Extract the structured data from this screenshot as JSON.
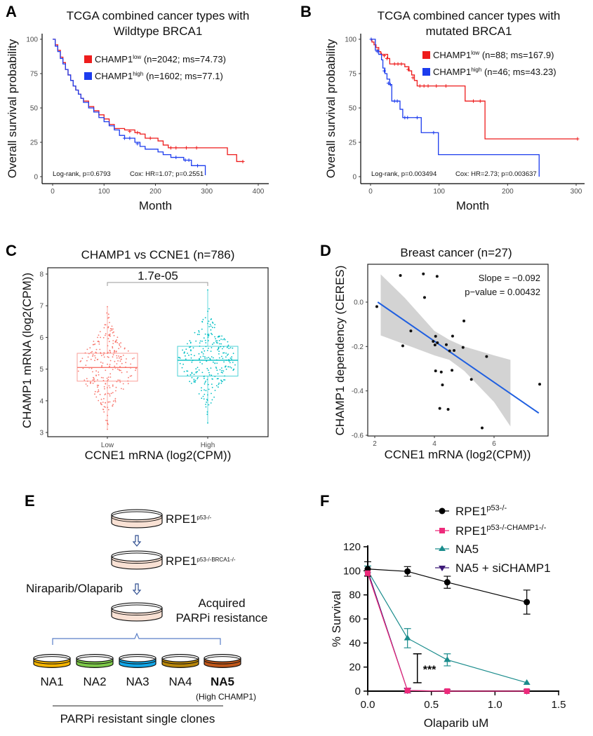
{
  "chart_data": [
    {
      "panel": "A",
      "type": "line",
      "title": [
        "TCGA combined cancer types with",
        "Wildtype BRCA1"
      ],
      "xlabel": "Month",
      "ylabel": "Overall survival probability",
      "xlim": [
        0,
        400
      ],
      "ylim": [
        0,
        100
      ],
      "xticks": [
        "0",
        "100",
        "200",
        "300",
        "400"
      ],
      "yticks": [
        "0",
        "25",
        "50",
        "75",
        "100"
      ],
      "grid": false,
      "legend_position": "top-right",
      "annotation": {
        "logrank": "Log-rank, p=0.6793",
        "cox": "Cox: HR=1.07; p=0.2551"
      },
      "series": [
        {
          "name": "CHAMP1",
          "sup": "low",
          "stats": "(n=2042; ms=74.73)",
          "color": "#ee1c1c",
          "steps": [
            [
              0,
              100
            ],
            [
              5,
              96
            ],
            [
              10,
              92
            ],
            [
              15,
              87
            ],
            [
              20,
              83
            ],
            [
              25,
              78
            ],
            [
              30,
              74
            ],
            [
              35,
              70
            ],
            [
              40,
              66
            ],
            [
              45,
              63
            ],
            [
              50,
              60
            ],
            [
              55,
              57
            ],
            [
              60,
              55
            ],
            [
              70,
              51
            ],
            [
              80,
              48
            ],
            [
              90,
              45
            ],
            [
              100,
              42
            ],
            [
              110,
              38
            ],
            [
              120,
              35
            ],
            [
              140,
              34
            ],
            [
              160,
              32
            ],
            [
              170,
              31
            ],
            [
              180,
              28
            ],
            [
              205,
              26
            ],
            [
              215,
              23
            ],
            [
              225,
              21
            ],
            [
              340,
              16
            ],
            [
              358,
              11
            ],
            [
              370,
              11
            ]
          ],
          "censored": [
            [
              150,
              33
            ],
            [
              165,
              32
            ],
            [
              190,
              28
            ],
            [
              230,
              21
            ],
            [
              240,
              21
            ],
            [
              260,
              21
            ],
            [
              280,
              21
            ],
            [
              370,
              11
            ]
          ]
        },
        {
          "name": "CHAMP1",
          "sup": "high",
          "stats": "(n=1602; ms=77.1)",
          "color": "#1c3cee",
          "steps": [
            [
              0,
              100
            ],
            [
              5,
              95
            ],
            [
              10,
              91
            ],
            [
              15,
              86
            ],
            [
              20,
              82
            ],
            [
              25,
              78
            ],
            [
              30,
              74
            ],
            [
              35,
              70
            ],
            [
              40,
              66
            ],
            [
              45,
              63
            ],
            [
              50,
              60
            ],
            [
              55,
              57
            ],
            [
              60,
              54
            ],
            [
              70,
              50
            ],
            [
              80,
              47
            ],
            [
              90,
              43
            ],
            [
              100,
              40
            ],
            [
              110,
              37
            ],
            [
              120,
              34
            ],
            [
              130,
              30
            ],
            [
              140,
              28
            ],
            [
              160,
              25
            ],
            [
              170,
              22
            ],
            [
              180,
              20
            ],
            [
              205,
              18
            ],
            [
              215,
              16
            ],
            [
              230,
              14
            ],
            [
              255,
              12
            ],
            [
              270,
              8
            ],
            [
              297,
              1
            ]
          ],
          "censored": [
            [
              140,
              28
            ],
            [
              150,
              28
            ],
            [
              165,
              24
            ],
            [
              240,
              14
            ],
            [
              258,
              12
            ],
            [
              265,
              12
            ],
            [
              282,
              8
            ]
          ]
        }
      ]
    },
    {
      "panel": "B",
      "type": "line",
      "title": [
        "TCGA combined cancer types with",
        "mutated BRCA1"
      ],
      "xlabel": "Month",
      "ylabel": "Overall survival probability",
      "xlim": [
        0,
        300
      ],
      "ylim": [
        0,
        100
      ],
      "xticks": [
        "0",
        "100",
        "200",
        "300"
      ],
      "yticks": [
        "0",
        "25",
        "50",
        "75",
        "100"
      ],
      "grid": false,
      "legend_position": "top-right",
      "annotation": {
        "logrank": "Log-rank, p=0.003494",
        "cox": "Cox: HR=2.73; p=0.003637"
      },
      "series": [
        {
          "name": "CHAMP1",
          "sup": "low",
          "stats": "(n=88; ms=167.9)",
          "color": "#ee1c1c",
          "steps": [
            [
              0,
              100
            ],
            [
              2,
              98
            ],
            [
              5,
              96
            ],
            [
              8,
              94
            ],
            [
              12,
              91
            ],
            [
              15,
              89
            ],
            [
              25,
              86
            ],
            [
              28,
              82
            ],
            [
              50,
              80
            ],
            [
              56,
              77
            ],
            [
              60,
              74
            ],
            [
              64,
              70
            ],
            [
              68,
              66
            ],
            [
              138,
              55
            ],
            [
              167,
              27.5
            ],
            [
              302,
              27.5
            ]
          ],
          "censored": [
            [
              10,
              92
            ],
            [
              16,
              89
            ],
            [
              20,
              88
            ],
            [
              24,
              86
            ],
            [
              35,
              82
            ],
            [
              40,
              82
            ],
            [
              45,
              82
            ],
            [
              55,
              78
            ],
            [
              62,
              72
            ],
            [
              72,
              66
            ],
            [
              78,
              66
            ],
            [
              84,
              66
            ],
            [
              96,
              66
            ],
            [
              110,
              66
            ],
            [
              150,
              55
            ],
            [
              160,
              55
            ],
            [
              302,
              27.5
            ]
          ]
        },
        {
          "name": "CHAMP1",
          "sup": "high",
          "stats": "(n=46; ms=43.23)",
          "color": "#1c3cee",
          "steps": [
            [
              0,
              100
            ],
            [
              7,
              92
            ],
            [
              12,
              89
            ],
            [
              16,
              85
            ],
            [
              18,
              79
            ],
            [
              21,
              75
            ],
            [
              24,
              71
            ],
            [
              28,
              67
            ],
            [
              31,
              55
            ],
            [
              43,
              49
            ],
            [
              47,
              43
            ],
            [
              74,
              32
            ],
            [
              99,
              16
            ],
            [
              246,
              0
            ]
          ],
          "censored": [
            [
              1,
              100
            ],
            [
              10,
              91
            ],
            [
              20,
              77
            ],
            [
              26,
              68
            ],
            [
              29,
              67
            ],
            [
              35,
              55
            ],
            [
              39,
              55
            ],
            [
              50,
              43
            ],
            [
              54,
              43
            ],
            [
              68,
              43
            ],
            [
              92,
              32
            ]
          ]
        }
      ]
    },
    {
      "panel": "C",
      "type": "box",
      "title": "CHAMP1 vs CCNE1 (n=786)",
      "xlabel": "CCNE1 mRNA (log2(CPM))",
      "ylabel": "CHAMP1 mRNA (log2(CPM))",
      "ylim": [
        3,
        8
      ],
      "yticks": [
        "3",
        "4",
        "5",
        "6",
        "7",
        "8"
      ],
      "categories": [
        "Low",
        "High"
      ],
      "p_value": "1.7e-05",
      "groups": [
        {
          "category": "Low",
          "color": "#f8766d",
          "min": 3.1,
          "q1": 4.62,
          "median": 5.05,
          "q3": 5.5,
          "max": 6.97
        },
        {
          "category": "High",
          "color": "#00bfc4",
          "min": 3.3,
          "q1": 4.78,
          "median": 5.28,
          "q3": 5.72,
          "max": 7.5
        }
      ]
    },
    {
      "panel": "D",
      "type": "scatter",
      "title": "Breast cancer (n=27)",
      "xlabel": "CCNE1 mRNA (log2(CPM))",
      "ylabel": "CHAMP1 dependency (CERES)",
      "xlim": [
        1.8,
        7.7
      ],
      "ylim": [
        -0.6,
        0.16
      ],
      "xticks": [
        "2",
        "4",
        "6"
      ],
      "yticks": [
        "-0.6",
        "-0.4",
        "-0.2",
        "0.0"
      ],
      "annotation": {
        "slope": "Slope = −0.092",
        "pvalue": "p−value = 0.00432"
      },
      "fit_color": "#1f5fe0",
      "band_color": "#d3d3d3",
      "fit": {
        "x": [
          2.1,
          7.5
        ],
        "y": [
          0.0,
          -0.5
        ]
      },
      "confidence_band": {
        "x": [
          2.2,
          3.0,
          4.0,
          4.5,
          5.0,
          6.0,
          6.55
        ],
        "upper": [
          0.125,
          0.02,
          -0.13,
          -0.17,
          -0.2,
          -0.24,
          -0.26
        ],
        "lower": [
          -0.15,
          -0.19,
          -0.24,
          -0.26,
          -0.31,
          -0.45,
          -0.56
        ]
      },
      "points": [
        [
          2.07,
          -0.02
        ],
        [
          2.86,
          0.12
        ],
        [
          3.63,
          0.127
        ],
        [
          4.09,
          0.116
        ],
        [
          3.67,
          0.021
        ],
        [
          4.99,
          -0.085
        ],
        [
          3.21,
          -0.13
        ],
        [
          2.94,
          -0.197
        ],
        [
          4.04,
          -0.154
        ],
        [
          4.61,
          -0.153
        ],
        [
          3.96,
          -0.177
        ],
        [
          4.02,
          -0.193
        ],
        [
          4.1,
          -0.183
        ],
        [
          4.4,
          -0.192
        ],
        [
          4.51,
          -0.22
        ],
        [
          4.66,
          -0.218
        ],
        [
          4.96,
          -0.204
        ],
        [
          5.75,
          -0.245
        ],
        [
          4.04,
          -0.31
        ],
        [
          4.23,
          -0.315
        ],
        [
          4.59,
          -0.307
        ],
        [
          4.27,
          -0.373
        ],
        [
          5.24,
          -0.348
        ],
        [
          7.53,
          -0.37
        ],
        [
          4.18,
          -0.479
        ],
        [
          4.46,
          -0.483
        ],
        [
          5.6,
          -0.567
        ]
      ]
    },
    {
      "panel": "F",
      "type": "line",
      "xlabel": "Olaparib uM",
      "ylabel": "% Survival",
      "xlim": [
        0,
        1.5
      ],
      "ylim": [
        0,
        120
      ],
      "xticks": [
        "0.0",
        "0.5",
        "1.0",
        "1.5"
      ],
      "yticks": [
        "0",
        "20",
        "40",
        "60",
        "80",
        "100",
        "120"
      ],
      "x": [
        0,
        0.3125,
        0.625,
        1.25
      ],
      "significance": "***",
      "significance_range": [
        7,
        31
      ],
      "legend_position": "top-right",
      "series": [
        {
          "name": "RPE1",
          "sup": "p53-/-",
          "marker": "circle",
          "color": "#000000",
          "y": [
            101.5,
            99.5,
            90.5,
            74
          ],
          "err": [
            6,
            4,
            5,
            10
          ]
        },
        {
          "name": "RPE1",
          "sup": "p53-/-CHAMP1-/-",
          "marker": "square",
          "color": "#ee2a7b",
          "y": [
            98,
            0.5,
            0,
            0
          ],
          "err": [
            0,
            0,
            0,
            0
          ]
        },
        {
          "name": "NA5",
          "sup": "",
          "marker": "triangle",
          "color": "#1a8c8c",
          "y": [
            100,
            44,
            26,
            7
          ],
          "err": [
            4,
            8,
            5,
            0
          ]
        },
        {
          "name": "NA5 + siCHAMP1",
          "sup": "",
          "marker": "triangle-down",
          "color": "#3d1a78",
          "y": [
            100,
            0.5,
            0,
            0
          ],
          "err": [
            0,
            2,
            0,
            0
          ]
        }
      ]
    }
  ],
  "diagram_E": {
    "panel": "E",
    "parental": {
      "name": "RPE1",
      "sup": "p53-/-"
    },
    "knockout": {
      "name": "RPE1",
      "sup": "p53-/-BRCA1-/-"
    },
    "treatment": "Niraparib/Olaparib",
    "resistance": [
      "Acquired",
      "PARPi resistance"
    ],
    "clones": [
      {
        "label": "NA1",
        "color": "#f5b400"
      },
      {
        "label": "NA2",
        "color": "#7ec94a"
      },
      {
        "label": "NA3",
        "color": "#12a7e8"
      },
      {
        "label": "NA4",
        "color": "#b8860b"
      },
      {
        "label": "NA5",
        "color": "#c0571a",
        "bold": true
      }
    ],
    "highlight_note": "(High CHAMP1)",
    "footer": "PARPi resistant single clones",
    "dish_color": "#f9e1d4",
    "arrow_color": "#2e4d8f",
    "bracket_color": "#5b7fc7"
  }
}
